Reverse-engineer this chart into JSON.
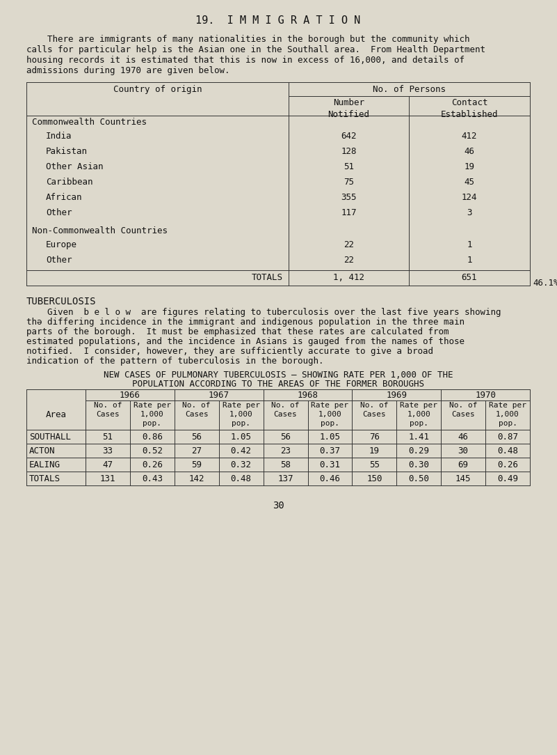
{
  "bg_color": "#ddd9cc",
  "text_color": "#111111",
  "title": "19.  I M M I G R A T I O N",
  "intro_lines": [
    "    There are immigrants of many nationalities in the borough but the community which",
    "calls for particular help is the Asian one in the Southall area.  From Health Department",
    "housing records it is estimated that this is now in excess of 16,000, and details of",
    "admissions during 1970 are given below."
  ],
  "table1_section1_header": "Commonwealth Countries",
  "table1_section1": [
    [
      "India",
      "642",
      "412"
    ],
    [
      "Pakistan",
      "128",
      "46"
    ],
    [
      "Other Asian",
      "51",
      "19"
    ],
    [
      "Caribbean",
      "75",
      "45"
    ],
    [
      "African",
      "355",
      "124"
    ],
    [
      "Other",
      "117",
      "3"
    ]
  ],
  "table1_section2_header": "Non-Commonwealth Countries",
  "table1_section2": [
    [
      "Europe",
      "22",
      "1"
    ],
    [
      "Other",
      "22",
      "1"
    ]
  ],
  "table1_totals": [
    "TOTALS",
    "1, 412",
    "651"
  ],
  "table1_note": "46.1%",
  "tb_header": "TUBERCULOSIS",
  "tb_intro_lines": [
    "    Given  b e l o w  are figures relating to tuberculosis over the last five years showing",
    "thə differing incidence in the immigrant and indigenous population in the three main",
    "parts of the borough.  It must be emphasized that these rates are calculated from",
    "estimated populations, and the incidence in Asians is gauged from the names of those",
    "notified.  I consider, however, they are sufficiently accurate to give a broad",
    "indication of the pattern of tuberculosis in the borough."
  ],
  "table2_title1": "NEW CASES OF PULMONARY TUBERCULOSIS – SHOWING RATE PER 1,000 OF THE",
  "table2_title2": "POPULATION ACCORDING TO THE AREAS OF THE FORMER BOROUGHS",
  "table2_years": [
    "1966",
    "1967",
    "1968",
    "1969",
    "1970"
  ],
  "table2_data": [
    [
      "SOUTHALL",
      "51",
      "0.86",
      "56",
      "1.05",
      "56",
      "1.05",
      "76",
      "1.41",
      "46",
      "0.87"
    ],
    [
      "ACTON",
      "33",
      "0.52",
      "27",
      "0.42",
      "23",
      "0.37",
      "19",
      "0.29",
      "30",
      "0.48"
    ],
    [
      "EALING",
      "47",
      "0.26",
      "59",
      "0.32",
      "58",
      "0.31",
      "55",
      "0.30",
      "69",
      "0.26"
    ],
    [
      "TOTALS",
      "131",
      "0.43",
      "142",
      "0.48",
      "137",
      "0.46",
      "150",
      "0.50",
      "145",
      "0.49"
    ]
  ],
  "page_number": "30"
}
